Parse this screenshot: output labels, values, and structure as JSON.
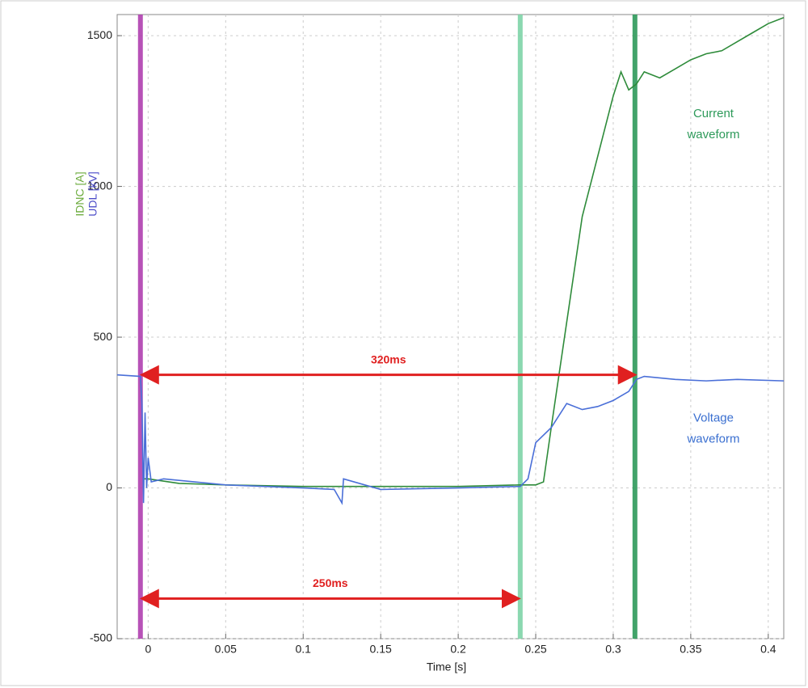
{
  "chart_data": {
    "type": "line",
    "xlabel": "Time [s]",
    "ylabels": [
      {
        "text": "IDNC [A]",
        "color": "#6aaa3a"
      },
      {
        "text": "UDL [kV]",
        "color": "#4b4bc8"
      }
    ],
    "xlim": [
      -0.02,
      0.41
    ],
    "ylim": [
      -500,
      1570
    ],
    "xticks": [
      0,
      0.05,
      0.1,
      0.15,
      0.2,
      0.25,
      0.3,
      0.35,
      0.4
    ],
    "yticks": [
      -500,
      0,
      500,
      1000,
      1500
    ],
    "grid": true,
    "series": [
      {
        "name": "Current waveform",
        "color": "#2e8b3a",
        "x": [
          -0.003,
          0,
          0.02,
          0.05,
          0.1,
          0.15,
          0.2,
          0.24,
          0.25,
          0.255,
          0.26,
          0.27,
          0.28,
          0.29,
          0.3,
          0.305,
          0.31,
          0.315,
          0.32,
          0.33,
          0.34,
          0.35,
          0.36,
          0.37,
          0.38,
          0.39,
          0.4,
          0.41
        ],
        "values": [
          30,
          30,
          15,
          10,
          5,
          5,
          5,
          10,
          10,
          20,
          200,
          550,
          900,
          1100,
          1300,
          1380,
          1320,
          1340,
          1380,
          1360,
          1390,
          1420,
          1440,
          1450,
          1480,
          1510,
          1540,
          1560
        ]
      },
      {
        "name": "Voltage waveform",
        "color": "#4a6fd8",
        "x": [
          -0.02,
          -0.005,
          -0.004,
          -0.003,
          -0.002,
          -0.001,
          0,
          0.002,
          0.01,
          0.05,
          0.1,
          0.12,
          0.125,
          0.126,
          0.15,
          0.2,
          0.24,
          0.245,
          0.25,
          0.26,
          0.27,
          0.28,
          0.29,
          0.3,
          0.31,
          0.315,
          0.32,
          0.34,
          0.36,
          0.38,
          0.41
        ],
        "values": [
          375,
          370,
          280,
          -50,
          250,
          0,
          100,
          20,
          30,
          10,
          0,
          -5,
          -50,
          30,
          -5,
          0,
          5,
          30,
          150,
          200,
          280,
          260,
          270,
          290,
          320,
          360,
          370,
          360,
          355,
          360,
          355
        ]
      }
    ],
    "markers": [
      {
        "x": -0.005,
        "color": "#b040b0"
      },
      {
        "x": 0.24,
        "color": "#7fd4a8"
      },
      {
        "x": 0.314,
        "color": "#2e9a5a"
      }
    ],
    "arrows": [
      {
        "text": "320ms",
        "x1": -0.005,
        "x2": 0.315,
        "y": 375
      },
      {
        "text": "250ms",
        "x1": -0.005,
        "x2": 0.24,
        "y": -367
      }
    ],
    "annotations": [
      {
        "lines": [
          "Current",
          "waveform"
        ],
        "x": 0.349,
        "y": 1240,
        "color": "#2e9a5a"
      },
      {
        "lines": [
          "Voltage",
          "waveform"
        ],
        "x": 0.349,
        "y": 230,
        "color": "#3a6fd0"
      }
    ]
  }
}
